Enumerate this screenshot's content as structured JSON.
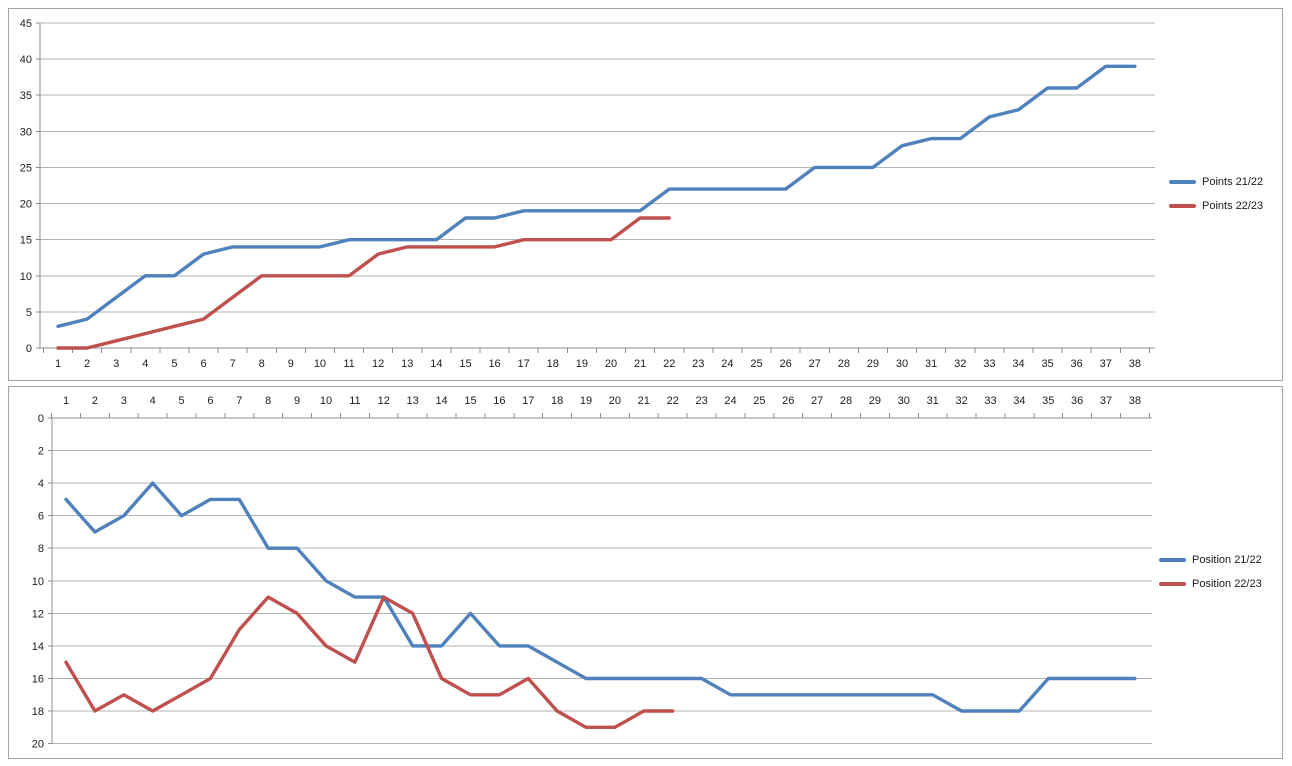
{
  "page": {
    "background_color": "#ffffff",
    "grid_color": "#b3b3b3",
    "axis_color": "#8c8c8c",
    "label_color": "#212121",
    "panel_border_color": "#a3a3a3"
  },
  "chart_data": [
    {
      "type": "line",
      "title": "",
      "xlabel": "",
      "ylabel": "",
      "x": [
        1,
        2,
        3,
        4,
        5,
        6,
        7,
        8,
        9,
        10,
        11,
        12,
        13,
        14,
        15,
        16,
        17,
        18,
        19,
        20,
        21,
        22,
        23,
        24,
        25,
        26,
        27,
        28,
        29,
        30,
        31,
        32,
        33,
        34,
        35,
        36,
        37,
        38
      ],
      "y_ticks": [
        0,
        5,
        10,
        15,
        20,
        25,
        30,
        35,
        40,
        45
      ],
      "ylim": [
        0,
        45
      ],
      "y_axis_reversed": false,
      "grid": "horizontal",
      "legend_position": "right",
      "series": [
        {
          "name": "Points 21/22",
          "color": "#4F81BD",
          "values": [
            3,
            4,
            7,
            10,
            10,
            13,
            14,
            14,
            14,
            14,
            15,
            15,
            15,
            15,
            18,
            18,
            19,
            19,
            19,
            19,
            19,
            22,
            22,
            22,
            22,
            22,
            25,
            25,
            25,
            28,
            29,
            29,
            32,
            33,
            36,
            36,
            39,
            39
          ]
        },
        {
          "name": "Points 22/23",
          "color": "#C0504D",
          "values": [
            0,
            0,
            1,
            2,
            3,
            4,
            7,
            10,
            10,
            10,
            10,
            13,
            14,
            14,
            14,
            14,
            15,
            15,
            15,
            15,
            18,
            18
          ]
        }
      ]
    },
    {
      "type": "line",
      "title": "",
      "xlabel": "",
      "ylabel": "",
      "x": [
        1,
        2,
        3,
        4,
        5,
        6,
        7,
        8,
        9,
        10,
        11,
        12,
        13,
        14,
        15,
        16,
        17,
        18,
        19,
        20,
        21,
        22,
        23,
        24,
        25,
        26,
        27,
        28,
        29,
        30,
        31,
        32,
        33,
        34,
        35,
        36,
        37,
        38
      ],
      "y_ticks": [
        0,
        2,
        4,
        6,
        8,
        10,
        12,
        14,
        16,
        18,
        20
      ],
      "ylim": [
        0,
        20
      ],
      "y_axis_reversed": true,
      "grid": "horizontal",
      "legend_position": "right",
      "series": [
        {
          "name": "Position 21/22",
          "color": "#4F81BD",
          "values": [
            5,
            7,
            6,
            4,
            6,
            5,
            5,
            8,
            8,
            10,
            11,
            11,
            14,
            14,
            12,
            14,
            14,
            15,
            16,
            16,
            16,
            16,
            16,
            17,
            17,
            17,
            17,
            17,
            17,
            17,
            17,
            18,
            18,
            18,
            16,
            16,
            16,
            16
          ]
        },
        {
          "name": "Position 22/23",
          "color": "#C0504D",
          "values": [
            15,
            18,
            17,
            18,
            17,
            16,
            13,
            11,
            12,
            14,
            15,
            11,
            12,
            16,
            17,
            17,
            16,
            18,
            19,
            19,
            18,
            18
          ]
        }
      ]
    }
  ]
}
